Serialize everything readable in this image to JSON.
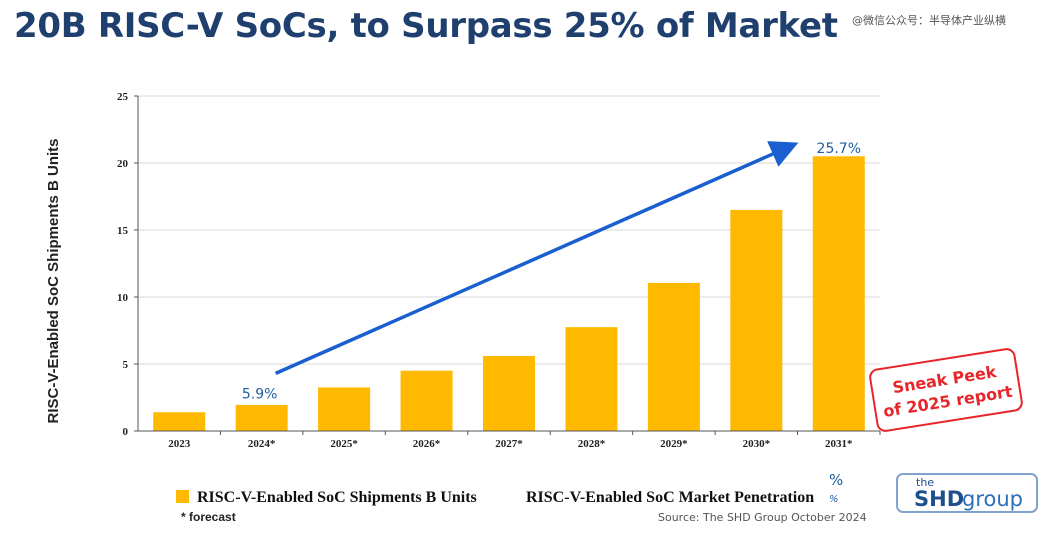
{
  "title": "20B RISC-V SoCs, to Surpass 25% of Market",
  "watermark": "@微信公众号：半导体产业纵横",
  "chart_data": {
    "type": "bar",
    "categories": [
      "2023",
      "2024*",
      "2025*",
      "2026*",
      "2027*",
      "2028*",
      "2029*",
      "2030*",
      "2031*"
    ],
    "series": [
      {
        "name": "RISC-V-Enabled SoC Shipments B Units",
        "values": [
          1.4,
          1.95,
          3.25,
          4.5,
          5.6,
          7.75,
          11.05,
          16.5,
          20.5
        ],
        "color": "#ffb900"
      }
    ],
    "ylim": [
      0,
      25
    ],
    "yticks": [
      0,
      5,
      10,
      15,
      20,
      25
    ],
    "ylabel": "RISC-V-Enabled SoC Shipments B Units",
    "xlabel": "",
    "grid": true,
    "secondary_series": {
      "name": "RISC-V-Enabled SoC Market Penetration",
      "unit": "%"
    },
    "annotations": [
      {
        "text": "5.9%",
        "category": "2024*"
      },
      {
        "text": "25.7%",
        "category": "2031*"
      }
    ],
    "arrow": {
      "from_category": "2024*",
      "from_value": 4.3,
      "to_category": "2031*",
      "to_value": 21.2,
      "color": "#1a5fd0"
    },
    "legend_position": "bottom",
    "footnote": "* forecast",
    "source": "Source: The SHD Group October 2024"
  },
  "stamp": {
    "line1": "Sneak Peek",
    "line2": "of 2025 report"
  },
  "logo": {
    "the": "the",
    "shd": "SHD",
    "group": "group"
  }
}
